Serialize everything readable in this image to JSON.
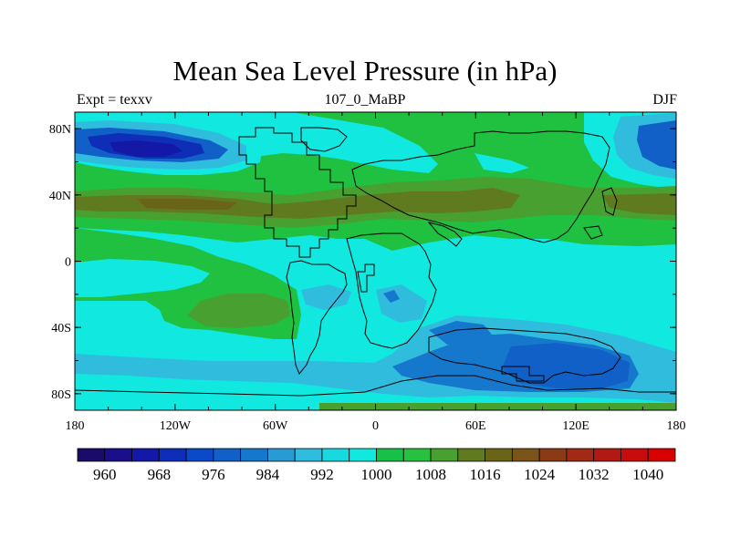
{
  "chart_data": {
    "type": "heatmap",
    "title": "Mean Sea Level Pressure (in hPa)",
    "left_label": "Expt = texxv",
    "center_label": "107_0_MaBP",
    "right_label": "DJF",
    "x_ticks": [
      {
        "value": -180,
        "label": "180"
      },
      {
        "value": -120,
        "label": "120W"
      },
      {
        "value": -60,
        "label": "60W"
      },
      {
        "value": 0,
        "label": "0"
      },
      {
        "value": 60,
        "label": "60E"
      },
      {
        "value": 120,
        "label": "120E"
      },
      {
        "value": 180,
        "label": "180"
      }
    ],
    "y_ticks": [
      {
        "value": 80,
        "label": "80N"
      },
      {
        "value": 40,
        "label": "40N"
      },
      {
        "value": 0,
        "label": "0"
      },
      {
        "value": -40,
        "label": "40S"
      },
      {
        "value": -80,
        "label": "80S"
      }
    ],
    "xlim": [
      -180,
      180
    ],
    "ylim": [
      -90,
      90
    ],
    "colorbar": {
      "levels": [
        960,
        964,
        968,
        972,
        976,
        980,
        984,
        988,
        992,
        996,
        1000,
        1004,
        1008,
        1012,
        1016,
        1020,
        1024,
        1028,
        1032,
        1036,
        1040
      ],
      "labels": [
        "960",
        "968",
        "976",
        "984",
        "992",
        "1000",
        "1008",
        "1016",
        "1024",
        "1032",
        "1040"
      ],
      "colors": [
        "#1a0a6a",
        "#1b0e8a",
        "#1418a6",
        "#0e2eb8",
        "#0a4ac8",
        "#1060c8",
        "#1678cc",
        "#2a9ad4",
        "#30bcdc",
        "#18d8e0",
        "#10e8e0",
        "#18c048",
        "#28c040",
        "#48a030",
        "#607a20",
        "#6a6418",
        "#7a5418",
        "#8a3a14",
        "#a02a14",
        "#b01a12",
        "#c80c0c",
        "#d80000"
      ]
    },
    "field_description": "Sea level pressure contours over lat/lon grid with coastline overlay",
    "regions": [
      {
        "name": "north-hemisphere-green",
        "level": 1008,
        "color": "#20c040"
      },
      {
        "name": "tropics-cyan",
        "level": 1000,
        "color": "#10e8e0"
      },
      {
        "name": "southern-ocean-low",
        "level": 984,
        "color": "#1060c8"
      },
      {
        "name": "north-pacific-low",
        "level": 968,
        "color": "#1418a6"
      },
      {
        "name": "subtropical-high",
        "level": 1016,
        "color": "#607a20"
      }
    ]
  }
}
